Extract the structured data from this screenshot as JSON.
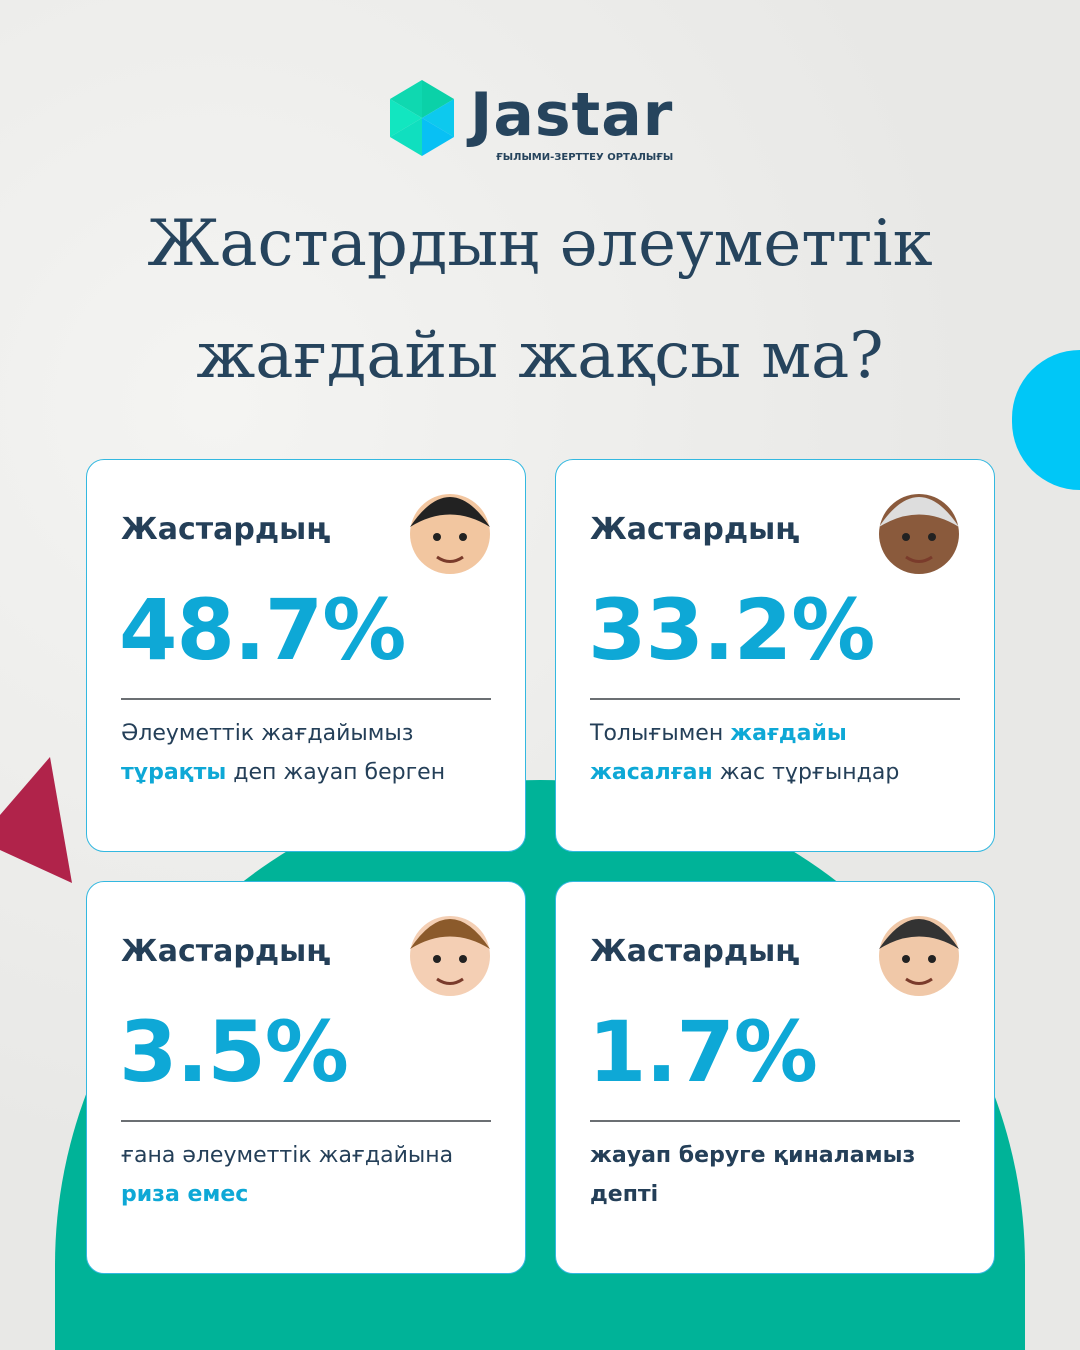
{
  "brand": {
    "name": "Jastar",
    "subtitle": "ҒЫЛЫМИ-ЗЕРТТЕУ ОРТАЛЫҒЫ"
  },
  "title": {
    "line1": "Жастардың әлеуметтік",
    "line2": "жағдайы жақсы ма?"
  },
  "colors": {
    "navy": "#26445d",
    "accent": "#0ea8d6",
    "green": "#00b398",
    "blue": "#00c7f7",
    "crimson": "#b0234a"
  },
  "cards": [
    {
      "heading": "Жастардың",
      "percent": "48.7%",
      "desc": [
        {
          "t": "Әлеуметтік жағдайымыз "
        },
        {
          "t": "тұрақты",
          "hl": true
        },
        {
          "t": " деп жауап берген"
        }
      ],
      "avatar": "thumbs-up-boy-icon"
    },
    {
      "heading": "Жастардың",
      "percent": "33.2%",
      "desc": [
        {
          "t": "Толығымен "
        },
        {
          "t": "жағдайы жасалған",
          "hl": true
        },
        {
          "t": " жас тұрғындар"
        }
      ],
      "avatar": "praying-girl-icon"
    },
    {
      "heading": "Жастардың",
      "percent": "3.5%",
      "desc": [
        {
          "t": "ғана әлеуметтік жағдайына "
        },
        {
          "t": "риза емес",
          "hl": true
        }
      ],
      "avatar": "thumbs-down-girl-icon"
    },
    {
      "heading": "Жастардың",
      "percent": "1.7%",
      "desc": [
        {
          "t": "жауап беруге қиналамыз депті",
          "bold": true
        }
      ],
      "avatar": "crossed-arms-boy-icon"
    }
  ]
}
